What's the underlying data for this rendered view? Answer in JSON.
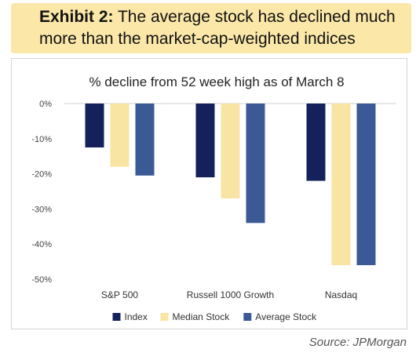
{
  "exhibit": {
    "label": "Exhibit 2:",
    "text": "The average stock has declined much more than the market-cap-weighted indices"
  },
  "source": "Source: JPMorgan",
  "chart_data": {
    "type": "bar",
    "title": "% decline from 52 week high as of March 8",
    "xlabel": "",
    "ylabel": "",
    "categories": [
      "S&P 500",
      "Russell 1000 Growth",
      "Nasdaq"
    ],
    "series": [
      {
        "name": "Index",
        "color": "#14215a",
        "values": [
          -12.5,
          -21,
          -22
        ]
      },
      {
        "name": "Median Stock",
        "color": "#f8e4a3",
        "values": [
          -18,
          -27,
          -46
        ]
      },
      {
        "name": "Average Stock",
        "color": "#3b5a95",
        "values": [
          -20.5,
          -34,
          -46
        ]
      }
    ],
    "yticks": [
      "0%",
      "-10%",
      "-20%",
      "-30%",
      "-40%",
      "-50%"
    ],
    "ylim": [
      -50,
      0
    ],
    "grid": false,
    "legend": "bottom"
  }
}
